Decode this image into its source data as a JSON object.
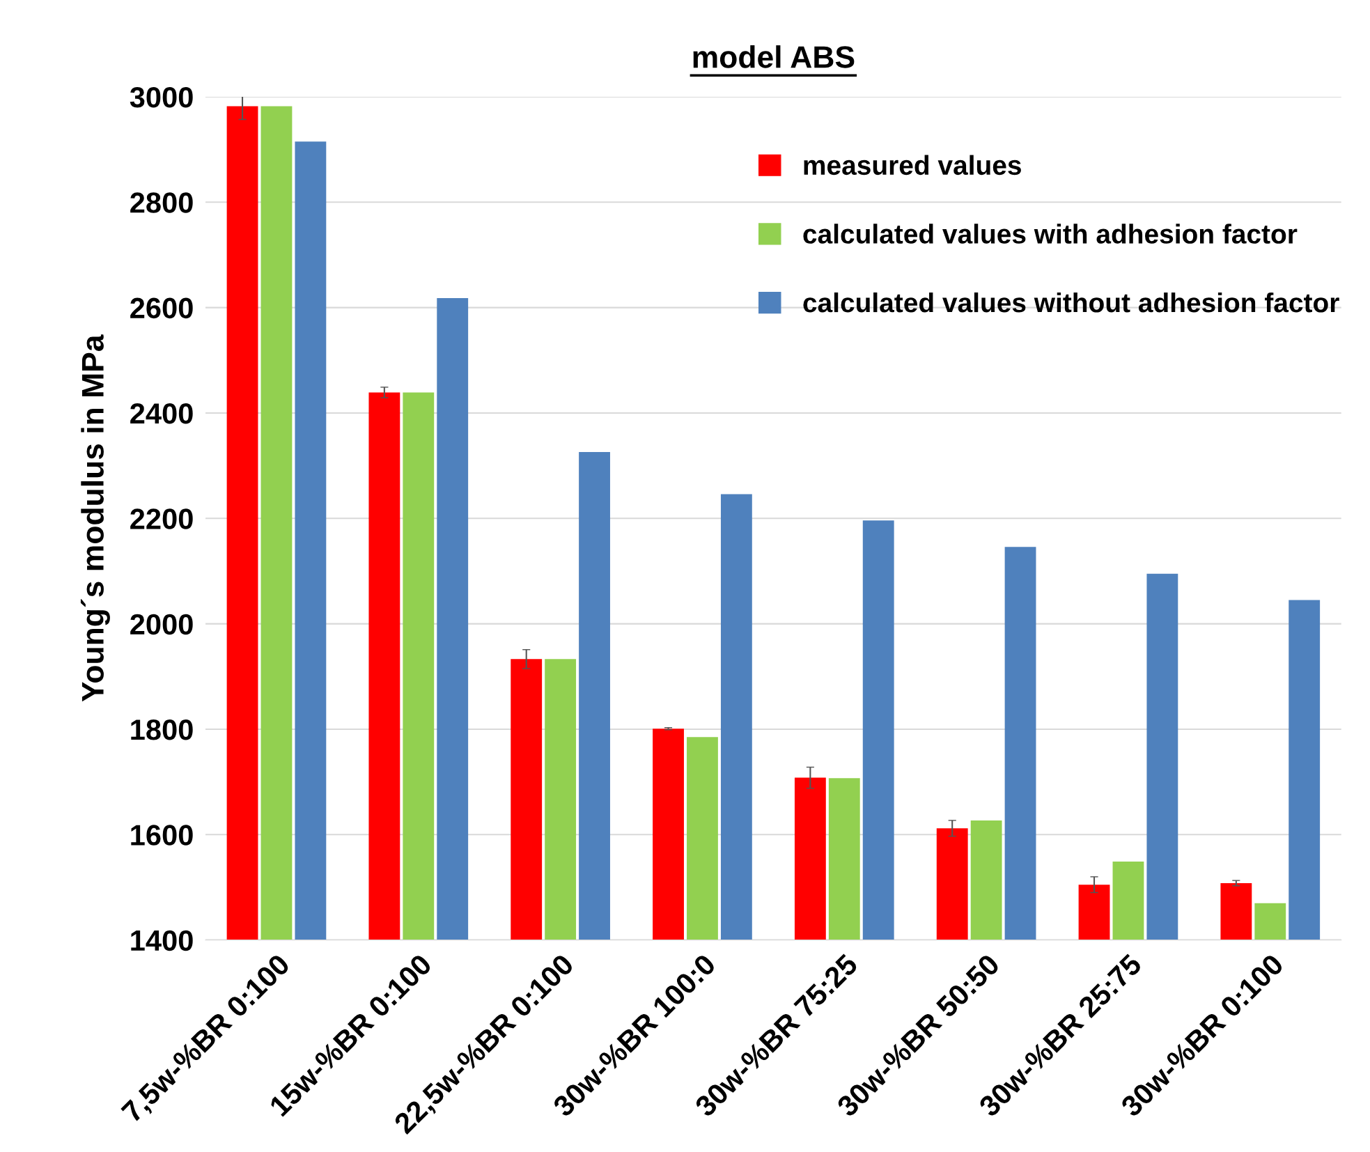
{
  "chart_data": {
    "type": "bar",
    "title": "model ABS",
    "ylabel": "Young´s modulus in MPa",
    "categories": [
      "7,5w-%BR 0:100",
      "15w-%BR 0:100",
      "22,5w-%BR 0:100",
      "30w-%BR 100:0",
      "30w-%BR 75:25",
      "30w-%BR 50:50",
      "30w-%BR 25:75",
      "30w-%BR 0:100"
    ],
    "series": [
      {
        "name": "measured values",
        "color": "#ff0000",
        "values": [
          2982,
          2439,
          1933,
          1801,
          1708,
          1612,
          1505,
          1508
        ],
        "errors": [
          25,
          10,
          18,
          2,
          20,
          15,
          15,
          5
        ]
      },
      {
        "name": "calculated values with adhesion factor",
        "color": "#92d050",
        "values": [
          2982,
          2439,
          1933,
          1785,
          1707,
          1627,
          1549,
          1470
        ]
      },
      {
        "name": "calculated values without adhesion factor",
        "color": "#4f81bd",
        "values": [
          2915,
          2618,
          2326,
          2246,
          2196,
          2146,
          2095,
          2045
        ]
      }
    ],
    "ylim": [
      1400,
      3000
    ],
    "yticks": [
      1400,
      1600,
      1800,
      2000,
      2200,
      2400,
      2600,
      2800,
      3000
    ],
    "grid": "y",
    "legend": "top right"
  }
}
